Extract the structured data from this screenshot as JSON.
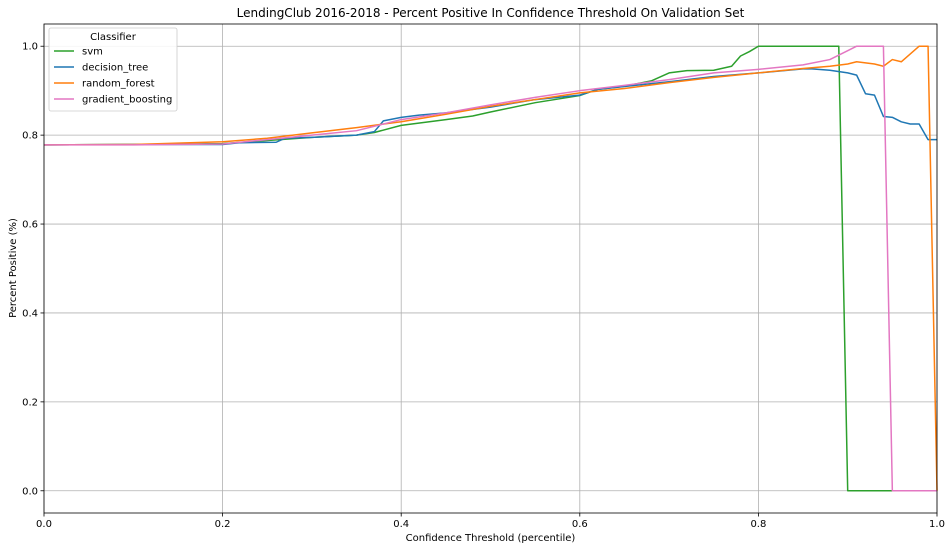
{
  "chart_data": {
    "type": "line",
    "title": "LendingClub 2016-2018 - Percent Positive In Confidence Threshold On Validation Set",
    "xlabel": "Confidence Threshold (percentile)",
    "ylabel": "Percent Positive (%)",
    "xlim": [
      0,
      1
    ],
    "ylim": [
      -0.05,
      1.05
    ],
    "xticks": [
      0.0,
      0.2,
      0.4,
      0.6,
      0.8,
      1.0
    ],
    "xtick_labels": [
      "0.0",
      "0.2",
      "0.4",
      "0.6",
      "0.8",
      "1.0"
    ],
    "yticks": [
      0.0,
      0.2,
      0.4,
      0.6,
      0.8,
      1.0
    ],
    "ytick_labels": [
      "0.0",
      "0.2",
      "0.4",
      "0.6",
      "0.8",
      "1.0"
    ],
    "grid": true,
    "legend": {
      "title": "Classifier",
      "placement": "top-left"
    },
    "series": [
      {
        "name": "svm",
        "color": "#2ca02c",
        "x": [
          0,
          0.1,
          0.2,
          0.25,
          0.3,
          0.35,
          0.37,
          0.4,
          0.45,
          0.48,
          0.5,
          0.55,
          0.6,
          0.62,
          0.65,
          0.68,
          0.7,
          0.72,
          0.75,
          0.77,
          0.78,
          0.79,
          0.8,
          0.85,
          0.89,
          0.9,
          0.95,
          1.0
        ],
        "y": [
          0.778,
          0.779,
          0.781,
          0.788,
          0.795,
          0.8,
          0.806,
          0.822,
          0.835,
          0.843,
          0.852,
          0.873,
          0.889,
          0.903,
          0.91,
          0.922,
          0.94,
          0.945,
          0.946,
          0.955,
          0.978,
          0.988,
          1.0,
          1.0,
          1.0,
          0.0,
          0.0,
          0.0
        ]
      },
      {
        "name": "decision_tree",
        "color": "#1f77b4",
        "x": [
          0,
          0.1,
          0.2,
          0.22,
          0.26,
          0.27,
          0.3,
          0.35,
          0.37,
          0.38,
          0.4,
          0.42,
          0.45,
          0.5,
          0.55,
          0.6,
          0.62,
          0.7,
          0.75,
          0.8,
          0.85,
          0.86,
          0.88,
          0.9,
          0.91,
          0.92,
          0.93,
          0.94,
          0.95,
          0.96,
          0.97,
          0.98,
          0.99,
          1.0
        ],
        "y": [
          0.778,
          0.779,
          0.779,
          0.783,
          0.784,
          0.793,
          0.795,
          0.8,
          0.808,
          0.832,
          0.84,
          0.845,
          0.85,
          0.863,
          0.88,
          0.89,
          0.903,
          0.92,
          0.932,
          0.94,
          0.949,
          0.949,
          0.946,
          0.94,
          0.935,
          0.893,
          0.89,
          0.842,
          0.84,
          0.83,
          0.825,
          0.825,
          0.79,
          0.79
        ]
      },
      {
        "name": "random_forest",
        "color": "#ff7f0e",
        "x": [
          0,
          0.1,
          0.2,
          0.25,
          0.3,
          0.35,
          0.4,
          0.45,
          0.5,
          0.55,
          0.6,
          0.65,
          0.7,
          0.75,
          0.8,
          0.85,
          0.88,
          0.9,
          0.91,
          0.93,
          0.94,
          0.95,
          0.96,
          0.98,
          0.99,
          1.0
        ],
        "y": [
          0.778,
          0.779,
          0.785,
          0.793,
          0.805,
          0.817,
          0.83,
          0.847,
          0.865,
          0.88,
          0.895,
          0.905,
          0.918,
          0.93,
          0.94,
          0.95,
          0.955,
          0.96,
          0.965,
          0.96,
          0.955,
          0.97,
          0.965,
          1.0,
          1.0,
          0.0
        ]
      },
      {
        "name": "gradient_boosting",
        "color": "#e377c2",
        "x": [
          0,
          0.1,
          0.2,
          0.25,
          0.3,
          0.35,
          0.4,
          0.45,
          0.5,
          0.55,
          0.6,
          0.65,
          0.7,
          0.75,
          0.8,
          0.85,
          0.88,
          0.9,
          0.91,
          0.93,
          0.94,
          0.95,
          1.0
        ],
        "y": [
          0.778,
          0.778,
          0.78,
          0.79,
          0.8,
          0.81,
          0.835,
          0.85,
          0.868,
          0.885,
          0.9,
          0.912,
          0.925,
          0.94,
          0.948,
          0.958,
          0.97,
          0.99,
          1.0,
          1.0,
          1.0,
          0.0,
          0.0
        ]
      }
    ]
  }
}
